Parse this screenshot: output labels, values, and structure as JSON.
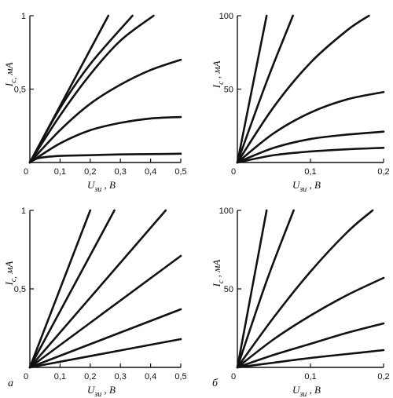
{
  "chart_data": [
    {
      "type": "line",
      "panel": "top-left",
      "xlabel": "U_зи , В",
      "ylabel": "I_с, мА",
      "xlim": [
        0,
        0.5
      ],
      "ylim": [
        0,
        1
      ],
      "x_ticks": [
        "0",
        "0,1",
        "0,2",
        "0,3",
        "0,4",
        "0,5"
      ],
      "y_ticks": [
        "0,5",
        "1"
      ],
      "series": [
        {
          "x": [
            0,
            0.26
          ],
          "y": [
            0,
            1.0
          ]
        },
        {
          "x": [
            0,
            0.1,
            0.2,
            0.34
          ],
          "y": [
            0,
            0.37,
            0.67,
            1.0
          ]
        },
        {
          "x": [
            0,
            0.1,
            0.2,
            0.3,
            0.41
          ],
          "y": [
            0,
            0.32,
            0.6,
            0.83,
            1.0
          ]
        },
        {
          "x": [
            0,
            0.1,
            0.2,
            0.3,
            0.4,
            0.5
          ],
          "y": [
            0,
            0.22,
            0.4,
            0.53,
            0.63,
            0.7
          ]
        },
        {
          "x": [
            0,
            0.1,
            0.2,
            0.3,
            0.4,
            0.5
          ],
          "y": [
            0,
            0.13,
            0.22,
            0.27,
            0.3,
            0.31
          ]
        },
        {
          "x": [
            0,
            0.03,
            0.1,
            0.2,
            0.3,
            0.4,
            0.5
          ],
          "y": [
            0,
            0.03,
            0.045,
            0.05,
            0.055,
            0.057,
            0.06
          ]
        }
      ]
    },
    {
      "type": "line",
      "panel": "top-right",
      "xlabel": "U_зи , В",
      "ylabel": "I_с , мА",
      "xlim": [
        0,
        0.2
      ],
      "ylim": [
        0,
        100
      ],
      "x_ticks": [
        "0",
        "0,1",
        "0,2"
      ],
      "y_ticks": [
        "50",
        "100"
      ],
      "series": [
        {
          "x": [
            0,
            0.04
          ],
          "y": [
            0,
            100
          ]
        },
        {
          "x": [
            0,
            0.04,
            0.076
          ],
          "y": [
            0,
            55,
            100
          ]
        },
        {
          "x": [
            0,
            0.05,
            0.1,
            0.15,
            0.18
          ],
          "y": [
            0,
            38,
            68,
            90,
            100
          ]
        },
        {
          "x": [
            0,
            0.05,
            0.1,
            0.15,
            0.2
          ],
          "y": [
            0,
            20,
            34,
            43,
            48
          ]
        },
        {
          "x": [
            0,
            0.05,
            0.1,
            0.15,
            0.2
          ],
          "y": [
            0,
            10,
            16,
            19,
            21
          ]
        },
        {
          "x": [
            0,
            0.05,
            0.1,
            0.15,
            0.2
          ],
          "y": [
            0,
            5,
            7.5,
            9,
            10
          ]
        }
      ]
    },
    {
      "type": "line",
      "panel": "bottom-left",
      "xlabel": "U_зи , В",
      "ylabel": "I_с, мА",
      "xlim": [
        0,
        0.5
      ],
      "ylim": [
        0,
        1
      ],
      "x_ticks": [
        "0",
        "0,1",
        "0,2",
        "0,3",
        "0,4",
        "0,5"
      ],
      "y_ticks": [
        "0,5",
        "1"
      ],
      "series": [
        {
          "x": [
            0,
            0.2
          ],
          "y": [
            0,
            1.0
          ]
        },
        {
          "x": [
            0,
            0.28
          ],
          "y": [
            0,
            1.0
          ]
        },
        {
          "x": [
            0,
            0.45
          ],
          "y": [
            0,
            1.0
          ]
        },
        {
          "x": [
            0,
            0.5
          ],
          "y": [
            0,
            0.71
          ]
        },
        {
          "x": [
            0,
            0.5
          ],
          "y": [
            0,
            0.37
          ]
        },
        {
          "x": [
            0,
            0.5
          ],
          "y": [
            0,
            0.18
          ]
        }
      ]
    },
    {
      "type": "line",
      "panel": "bottom-right",
      "xlabel": "U_зи , В",
      "ylabel": "I_с , мА",
      "xlim": [
        0,
        0.2
      ],
      "ylim": [
        0,
        100
      ],
      "x_ticks": [
        "0",
        "0,1",
        "0,2"
      ],
      "y_ticks": [
        "50",
        "100"
      ],
      "series": [
        {
          "x": [
            0,
            0.04
          ],
          "y": [
            0,
            100
          ]
        },
        {
          "x": [
            0,
            0.04,
            0.077
          ],
          "y": [
            0,
            55,
            100
          ]
        },
        {
          "x": [
            0,
            0.05,
            0.1,
            0.15,
            0.185
          ],
          "y": [
            0,
            32,
            61,
            86,
            100
          ]
        },
        {
          "x": [
            0,
            0.05,
            0.1,
            0.15,
            0.2
          ],
          "y": [
            0,
            18,
            33,
            46,
            57
          ]
        },
        {
          "x": [
            0,
            0.05,
            0.1,
            0.15,
            0.2
          ],
          "y": [
            0,
            8,
            15,
            22,
            28
          ]
        },
        {
          "x": [
            0,
            0.05,
            0.1,
            0.15,
            0.2
          ],
          "y": [
            0,
            3,
            6,
            8.5,
            11
          ]
        }
      ]
    }
  ],
  "panel_labels": {
    "a": "а",
    "b": "б"
  }
}
